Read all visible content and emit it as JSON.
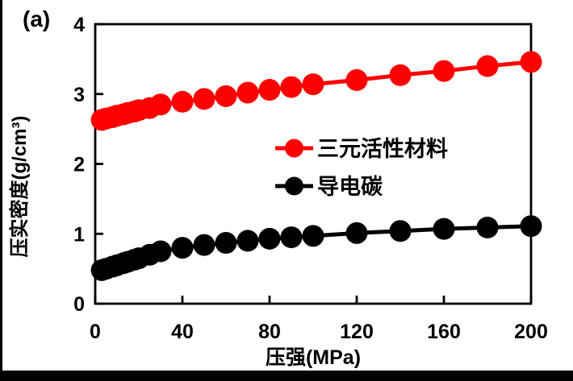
{
  "panel_label": "(a)",
  "chart_data": {
    "type": "line",
    "title": "",
    "xlabel": "压强(MPa)",
    "ylabel": "压实密度(g/cm³)",
    "xlim": [
      0,
      200
    ],
    "ylim": [
      0,
      4
    ],
    "xticks": [
      0,
      40,
      80,
      120,
      160,
      200
    ],
    "yticks": [
      0,
      1,
      2,
      3,
      4
    ],
    "grid": false,
    "legend_position": "center-right-inside",
    "frame_color": "#000000",
    "x": [
      3,
      5,
      8,
      10,
      13,
      15,
      18,
      20,
      25,
      30,
      40,
      50,
      60,
      70,
      80,
      90,
      100,
      120,
      140,
      160,
      180,
      200
    ],
    "series": [
      {
        "name": "三元活性材料",
        "color": "#ff0000",
        "marker": "circle",
        "values": [
          2.63,
          2.65,
          2.67,
          2.69,
          2.71,
          2.73,
          2.75,
          2.77,
          2.8,
          2.85,
          2.89,
          2.93,
          2.97,
          3.02,
          3.06,
          3.1,
          3.14,
          3.2,
          3.27,
          3.33,
          3.4,
          3.46
        ]
      },
      {
        "name": "导电碳",
        "color": "#000000",
        "marker": "circle",
        "values": [
          0.48,
          0.5,
          0.53,
          0.55,
          0.58,
          0.6,
          0.63,
          0.65,
          0.7,
          0.75,
          0.8,
          0.84,
          0.87,
          0.9,
          0.93,
          0.95,
          0.97,
          1.01,
          1.04,
          1.07,
          1.09,
          1.11
        ]
      }
    ]
  }
}
